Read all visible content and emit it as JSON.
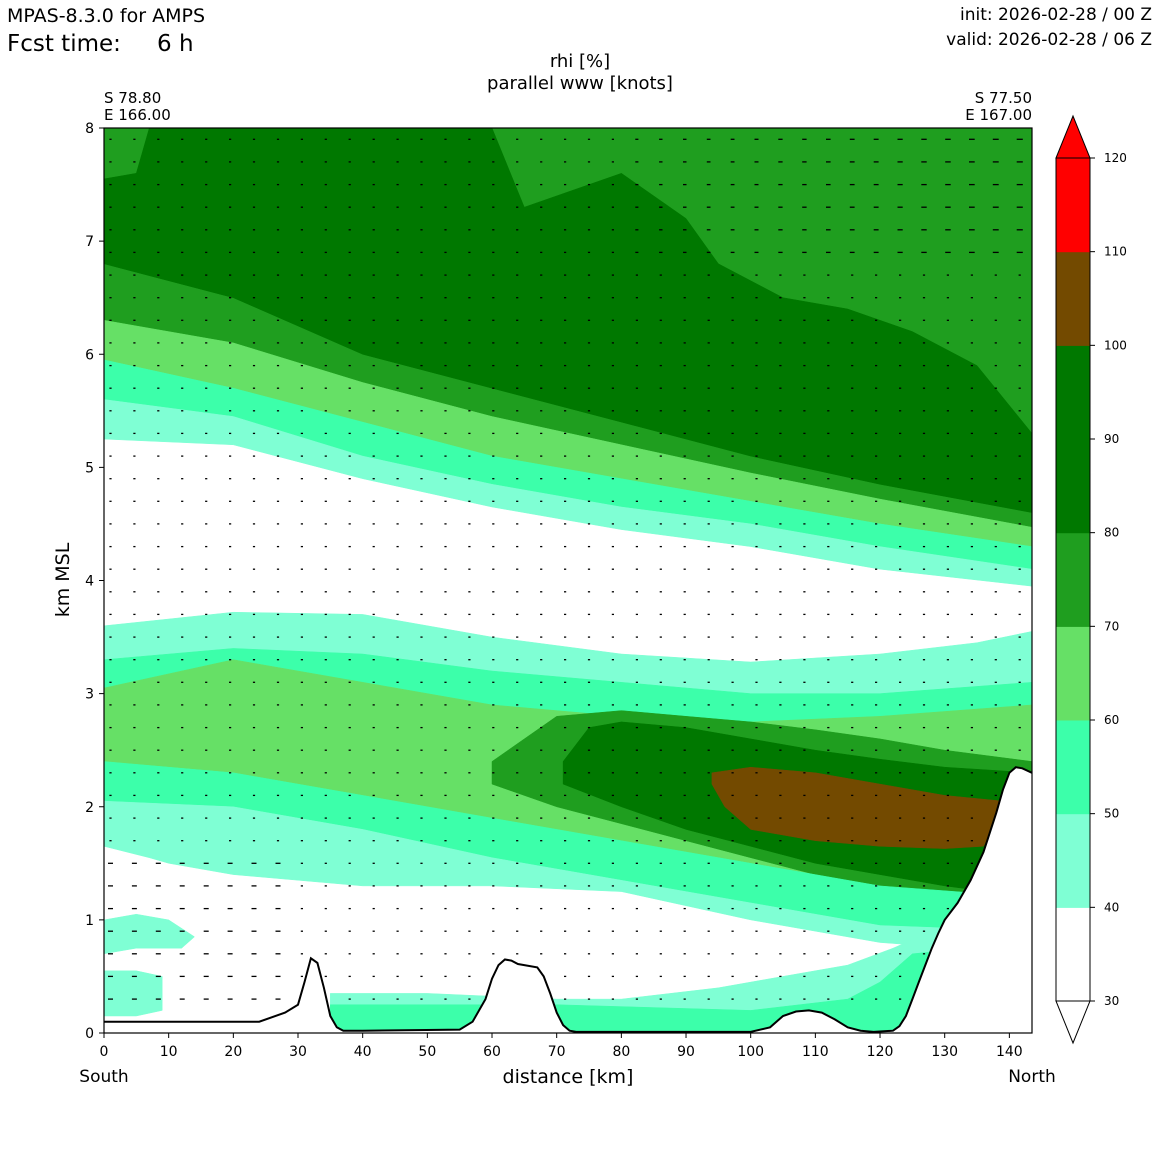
{
  "header": {
    "model": "MPAS-8.3.0 for AMPS",
    "fcst_label": "Fcst time:",
    "fcst_value": "6 h",
    "init": "init: 2026-02-28 / 00 Z",
    "valid": "valid: 2026-02-28 / 06 Z"
  },
  "endpoints": {
    "left_lat": "S 78.80",
    "left_lon": "E 166.00",
    "right_lat": "S 77.50",
    "right_lon": "E 167.00",
    "left_dir": "South",
    "right_dir": "North"
  },
  "chart_data": {
    "type": "cross-section contour",
    "title": "rhi [%]",
    "subtitle": "parallel www [knots]",
    "xlabel": "distance [km]",
    "ylabel": "km MSL",
    "xlim": [
      0,
      143.5
    ],
    "ylim": [
      0,
      8
    ],
    "x_ticks": [
      0,
      10,
      20,
      30,
      40,
      50,
      60,
      70,
      80,
      90,
      100,
      110,
      120,
      130,
      140
    ],
    "y_ticks": [
      0,
      1,
      2,
      3,
      4,
      5,
      6,
      7,
      8
    ],
    "colorbar": {
      "levels": [
        30,
        40,
        50,
        60,
        70,
        80,
        90,
        100,
        110,
        120
      ],
      "colors": [
        "#ffffff",
        "#7fffd4",
        "#3cffaa",
        "#66e066",
        "#1f9e1f",
        "#007800",
        "#007800",
        "#734a00",
        "#ff0000"
      ],
      "extend": "both"
    },
    "terrain": {
      "x": [
        0,
        10,
        20,
        24,
        28,
        30,
        31,
        32,
        33,
        34,
        35,
        36,
        37,
        40,
        55,
        57,
        59,
        60,
        61,
        62,
        63,
        64,
        65,
        67,
        68,
        69,
        70,
        71,
        72,
        73,
        75,
        100,
        103,
        105,
        107,
        109,
        111,
        113,
        115,
        117,
        119,
        122,
        123,
        124,
        125,
        126,
        127,
        128,
        129,
        130,
        132,
        134,
        136,
        138,
        139,
        140,
        141,
        142,
        143.5
      ],
      "y": [
        0.1,
        0.1,
        0.1,
        0.1,
        0.18,
        0.25,
        0.45,
        0.66,
        0.62,
        0.4,
        0.15,
        0.05,
        0.02,
        0.02,
        0.03,
        0.1,
        0.3,
        0.48,
        0.6,
        0.65,
        0.64,
        0.61,
        0.6,
        0.58,
        0.5,
        0.35,
        0.18,
        0.07,
        0.02,
        0.01,
        0.01,
        0.01,
        0.05,
        0.15,
        0.19,
        0.2,
        0.18,
        0.12,
        0.05,
        0.02,
        0.01,
        0.02,
        0.06,
        0.15,
        0.3,
        0.45,
        0.6,
        0.75,
        0.88,
        1.0,
        1.15,
        1.35,
        1.6,
        1.95,
        2.15,
        2.3,
        2.35,
        2.34,
        2.3
      ]
    },
    "rh_bands": [
      {
        "level": 80,
        "color": "#1f9e1f",
        "top_x": [
          0,
          143.5
        ],
        "top_y": [
          8,
          8
        ],
        "bottom_x": [
          0,
          20,
          40,
          60,
          80,
          100,
          120,
          143.5
        ],
        "bottom_y": [
          6.3,
          6.1,
          5.75,
          5.45,
          5.2,
          4.95,
          4.72,
          4.47
        ]
      },
      {
        "level": 90,
        "color": "#007800",
        "top_x": [
          0,
          5,
          7,
          20,
          32,
          40,
          60,
          65,
          75,
          80,
          90,
          95,
          105,
          115,
          125,
          135,
          143.5
        ],
        "top_y": [
          7.55,
          7.6,
          8,
          8,
          8,
          8,
          8,
          7.3,
          7.5,
          7.6,
          7.2,
          6.8,
          6.5,
          6.4,
          6.2,
          5.9,
          5.3
        ],
        "bottom_x": [
          0,
          20,
          40,
          60,
          80,
          100,
          120,
          143.5
        ],
        "bottom_y": [
          6.8,
          6.5,
          6.0,
          5.7,
          5.4,
          5.1,
          4.85,
          4.6
        ]
      },
      {
        "level": 70,
        "color": "#66e066",
        "top_x": [
          0,
          20,
          40,
          60,
          80,
          100,
          120,
          143.5
        ],
        "top_y": [
          6.3,
          6.1,
          5.75,
          5.45,
          5.2,
          4.95,
          4.72,
          4.47
        ],
        "bottom_x": [
          0,
          20,
          40,
          60,
          80,
          100,
          120,
          143.5
        ],
        "bottom_y": [
          5.95,
          5.7,
          5.4,
          5.1,
          4.9,
          4.7,
          4.5,
          4.3
        ]
      },
      {
        "level": 60,
        "color": "#3cffaa",
        "top_x": [
          0,
          20,
          40,
          60,
          80,
          100,
          120,
          143.5
        ],
        "top_y": [
          5.95,
          5.7,
          5.4,
          5.1,
          4.9,
          4.7,
          4.5,
          4.3
        ],
        "bottom_x": [
          0,
          20,
          40,
          60,
          80,
          100,
          120,
          143.5
        ],
        "bottom_y": [
          5.6,
          5.45,
          5.1,
          4.85,
          4.65,
          4.5,
          4.3,
          4.1
        ]
      },
      {
        "level": 50,
        "color": "#7fffd4",
        "top_x": [
          0,
          20,
          40,
          60,
          80,
          100,
          120,
          143.5
        ],
        "top_y": [
          5.6,
          5.45,
          5.1,
          4.85,
          4.65,
          4.5,
          4.3,
          4.1
        ],
        "bottom_x": [
          0,
          20,
          40,
          60,
          80,
          100,
          120,
          143.5
        ],
        "bottom_y": [
          5.25,
          5.2,
          4.9,
          4.65,
          4.45,
          4.3,
          4.1,
          3.95
        ]
      },
      {
        "level": 50,
        "color": "#7fffd4",
        "top_x": [
          0,
          20,
          40,
          60,
          80,
          100,
          120,
          135,
          143.5
        ],
        "top_y": [
          3.6,
          3.72,
          3.7,
          3.5,
          3.35,
          3.28,
          3.35,
          3.45,
          3.55
        ],
        "bottom_x": [
          0,
          20,
          40,
          60,
          80,
          100,
          120,
          143.5
        ],
        "bottom_y": [
          3.3,
          3.4,
          3.35,
          3.2,
          3.1,
          3.0,
          3.0,
          3.1
        ]
      },
      {
        "level": 60,
        "color": "#3cffaa",
        "top_x": [
          0,
          20,
          40,
          60,
          80,
          100,
          120,
          143.5
        ],
        "top_y": [
          3.3,
          3.4,
          3.35,
          3.2,
          3.1,
          3.0,
          3.0,
          3.1
        ],
        "bottom_x": [
          0,
          20,
          40,
          60,
          80,
          100,
          120,
          143.5
        ],
        "bottom_y": [
          3.05,
          3.3,
          3.1,
          2.9,
          2.8,
          2.75,
          2.8,
          2.9
        ]
      },
      {
        "level": 70,
        "color": "#66e066",
        "top_x": [
          0,
          20,
          40,
          60,
          80,
          100,
          120,
          143.5
        ],
        "top_y": [
          3.05,
          3.3,
          3.1,
          2.9,
          2.8,
          2.75,
          2.8,
          2.9
        ],
        "bottom_x": [
          0,
          20,
          40,
          60,
          80,
          100,
          120,
          143.5
        ],
        "bottom_y": [
          2.4,
          2.3,
          2.1,
          1.9,
          1.7,
          1.5,
          1.3,
          1.2
        ]
      },
      {
        "level": 80,
        "color": "#1f9e1f",
        "top_x": [
          60,
          65,
          70,
          80,
          90,
          100,
          110,
          120,
          130,
          143.5
        ],
        "top_y": [
          2.4,
          2.6,
          2.8,
          2.85,
          2.8,
          2.75,
          2.68,
          2.6,
          2.5,
          2.4
        ],
        "bottom_x": [
          60,
          70,
          80,
          90,
          100,
          110,
          120,
          130,
          143.5
        ],
        "bottom_y": [
          2.2,
          2.0,
          1.85,
          1.7,
          1.55,
          1.4,
          1.25,
          1.15,
          1.2
        ]
      },
      {
        "level": 90,
        "color": "#007800",
        "top_x": [
          71,
          75,
          80,
          90,
          100,
          110,
          120,
          130,
          143.5
        ],
        "top_y": [
          2.4,
          2.7,
          2.75,
          2.7,
          2.6,
          2.5,
          2.42,
          2.35,
          2.3
        ],
        "bottom_x": [
          71,
          80,
          90,
          100,
          110,
          120,
          130,
          143.5
        ],
        "bottom_y": [
          2.2,
          2.0,
          1.8,
          1.65,
          1.5,
          1.4,
          1.3,
          1.2
        ]
      },
      {
        "level": 100,
        "color": "#734a00",
        "top_x": [
          94,
          100,
          110,
          120,
          130,
          139
        ],
        "top_y": [
          2.3,
          2.35,
          2.3,
          2.2,
          2.1,
          2.05
        ],
        "bottom_x": [
          94,
          96,
          100,
          110,
          120,
          130,
          136,
          139
        ],
        "bottom_y": [
          2.2,
          2.0,
          1.8,
          1.7,
          1.65,
          1.63,
          1.65,
          2.0
        ]
      },
      {
        "level": 60,
        "color": "#3cffaa",
        "top_x": [
          0,
          20,
          40,
          60,
          80,
          100,
          120,
          143.5
        ],
        "top_y": [
          2.4,
          2.3,
          2.1,
          1.9,
          1.7,
          1.5,
          1.3,
          1.2
        ],
        "bottom_x": [
          0,
          20,
          40,
          60,
          80,
          100,
          120,
          143.5
        ],
        "bottom_y": [
          2.05,
          2.0,
          1.8,
          1.55,
          1.35,
          1.15,
          0.95,
          0.9
        ]
      },
      {
        "level": 50,
        "color": "#7fffd4",
        "top_x": [
          0,
          20,
          40,
          60,
          80,
          100,
          120,
          143.5
        ],
        "top_y": [
          2.05,
          2.0,
          1.8,
          1.55,
          1.35,
          1.15,
          0.95,
          0.9
        ],
        "bottom_x": [
          0,
          7,
          10,
          20,
          40,
          60,
          80,
          100,
          120,
          143.5
        ],
        "bottom_y": [
          1.65,
          1.55,
          1.5,
          1.4,
          1.3,
          1.3,
          1.25,
          1.0,
          0.8,
          0.7
        ]
      },
      {
        "level": 50,
        "color": "#7fffd4",
        "top_x": [
          35,
          50,
          70,
          80,
          95,
          105,
          115,
          122,
          128,
          143.5
        ],
        "top_y": [
          0.35,
          0.35,
          0.3,
          0.3,
          0.4,
          0.5,
          0.6,
          0.75,
          0.9,
          1.0
        ],
        "bottom_x": [
          35,
          143.5
        ],
        "bottom_y": [
          0,
          0
        ]
      },
      {
        "level": 60,
        "color": "#3cffaa",
        "top_x": [
          35,
          50,
          70,
          100,
          115,
          120,
          125,
          143.5
        ],
        "top_y": [
          0.25,
          0.25,
          0.25,
          0.2,
          0.3,
          0.45,
          0.7,
          0.8
        ],
        "bottom_x": [
          35,
          143.5
        ],
        "bottom_y": [
          0,
          0
        ]
      },
      {
        "level": 50,
        "color": "#7fffd4",
        "top_x": [
          0,
          5,
          10,
          14,
          12,
          5,
          0
        ],
        "top_y": [
          1.0,
          1.05,
          1.0,
          0.85,
          0.75,
          0.75,
          0.7
        ],
        "bottom_x": [
          0
        ],
        "bottom_y": [
          0.7
        ]
      },
      {
        "level": 50,
        "color": "#7fffd4",
        "top_x": [
          0,
          5,
          9,
          9,
          5,
          0
        ],
        "top_y": [
          0.55,
          0.55,
          0.5,
          0.2,
          0.15,
          0.15
        ],
        "bottom_x": [
          0
        ],
        "bottom_y": [
          0.15
        ]
      }
    ],
    "wind_vectors": {
      "x": [
        1,
        4.7,
        8.4,
        12.1,
        15.8,
        19.5,
        23.2,
        26.9,
        30.6,
        34.3,
        38,
        41.7,
        45.4,
        49.1,
        52.8,
        56.5,
        60.2,
        63.9,
        67.6,
        71.3,
        75,
        78.7,
        82.4,
        86.1,
        89.8,
        93.5,
        97.2,
        100.9,
        104.6,
        108.3,
        112,
        115.7,
        119.4,
        123.1,
        126.8,
        130.5,
        134.2,
        137.9,
        141.6
      ],
      "y": [
        0.3,
        0.5,
        0.7,
        0.9,
        1.1,
        1.3,
        1.5,
        1.7,
        1.9,
        2.1,
        2.3,
        2.5,
        2.7,
        2.9,
        3.1,
        3.3,
        3.5,
        3.7,
        3.9,
        4.1,
        4.3,
        4.5,
        4.7,
        4.9,
        5.1,
        5.3,
        5.5,
        5.7,
        5.9,
        6.1,
        6.3,
        6.5,
        6.7,
        6.9,
        7.1,
        7.3,
        7.5,
        7.7,
        7.9
      ]
    }
  }
}
